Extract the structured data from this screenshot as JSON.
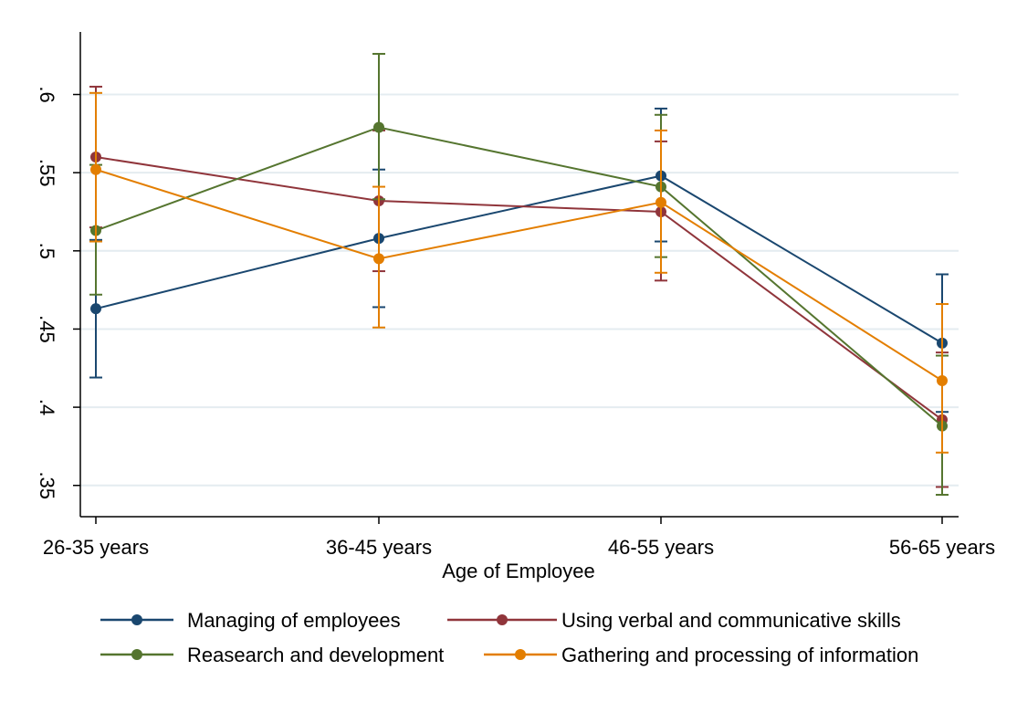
{
  "chart_data": {
    "type": "line",
    "xlabel": "Age of Employee",
    "ylabel": "",
    "categories": [
      "26-35 years",
      "36-45 years",
      "46-55 years",
      "56-65 years"
    ],
    "yticks": [
      0.35,
      0.4,
      0.45,
      0.5,
      0.55,
      0.6
    ],
    "ytick_labels": [
      ".35",
      ".4",
      ".45",
      ".5",
      ".55",
      ".6"
    ],
    "ylim": [
      0.33,
      0.64
    ],
    "grid": true,
    "legend_position": "bottom",
    "error_bars": true,
    "series": [
      {
        "name": "Managing of employees",
        "color": "#1a476f",
        "values": [
          0.463,
          0.508,
          0.548,
          0.441
        ],
        "lower": [
          0.419,
          0.464,
          0.506,
          0.397
        ],
        "upper": [
          0.507,
          0.552,
          0.591,
          0.485
        ]
      },
      {
        "name": "Using verbal and communicative skills",
        "color": "#90353b",
        "values": [
          0.56,
          0.532,
          0.525,
          0.392
        ],
        "lower": [
          0.515,
          0.487,
          0.481,
          0.349
        ],
        "upper": [
          0.605,
          0.577,
          0.57,
          0.435
        ]
      },
      {
        "name": "Reasearch and development",
        "color": "#55752f",
        "values": [
          0.513,
          0.579,
          0.541,
          0.388
        ],
        "lower": [
          0.472,
          0.533,
          0.496,
          0.344
        ],
        "upper": [
          0.555,
          0.626,
          0.587,
          0.433
        ]
      },
      {
        "name": "Gathering and processing of information",
        "color": "#e37e00",
        "values": [
          0.552,
          0.495,
          0.531,
          0.417
        ],
        "lower": [
          0.506,
          0.451,
          0.486,
          0.371
        ],
        "upper": [
          0.601,
          0.541,
          0.577,
          0.466
        ]
      }
    ]
  }
}
